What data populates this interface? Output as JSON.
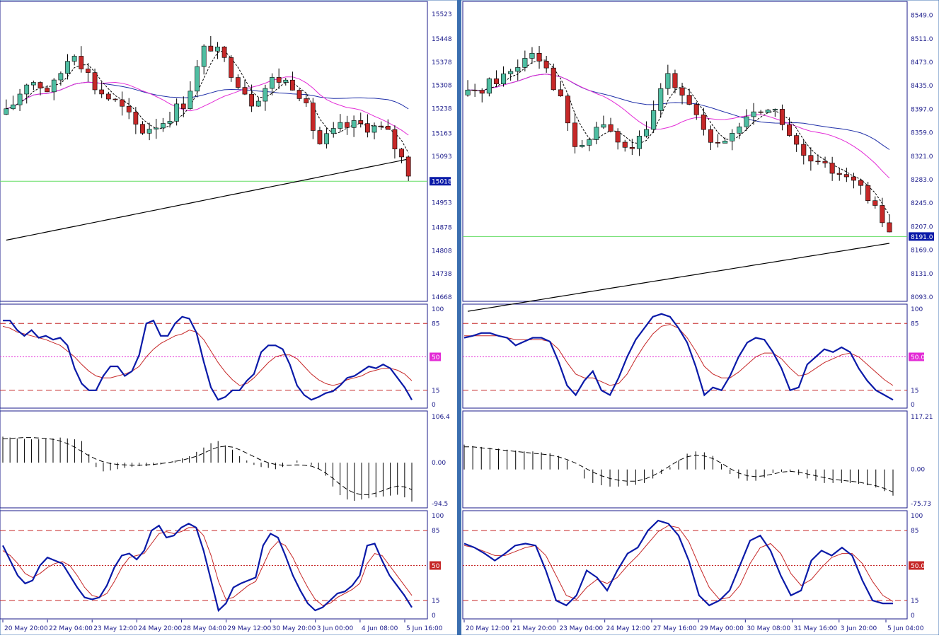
{
  "colors": {
    "bull": "#4fbea2",
    "bear": "#c62828",
    "ma_fast": "#000000",
    "ma_mid": "#e32bd6",
    "ma_slow": "#1f2fa8",
    "ma_long": "#000000",
    "level_line": "#66dd66",
    "stoch_main": "#0a1aa8",
    "stoch_signal": "#c62828",
    "level_dash": "#c62828",
    "mid_dot": "#e32bd6",
    "price_tag_bg": "#0a1aa8",
    "mid_tag_pink": "#e32bd6",
    "mid_tag_red": "#c62828",
    "panel_border": "#1a1a8a",
    "axis_text": "#1a1a8a"
  },
  "icons": [
    "price-tag-marker"
  ],
  "left": {
    "price_ticks": [
      "15523",
      "15448",
      "15378",
      "15308",
      "15238",
      "15163",
      "15093",
      "15018",
      "14953",
      "14878",
      "14808",
      "14738",
      "14668"
    ],
    "price_range": [
      14668,
      15540
    ],
    "current_price": "15018",
    "stoch1": {
      "ticks": [
        "100",
        "85",
        "50",
        "15",
        "0"
      ],
      "mid_tag": "50",
      "main": [
        88,
        88,
        78,
        72,
        78,
        70,
        72,
        68,
        70,
        62,
        38,
        22,
        15,
        15,
        30,
        40,
        40,
        30,
        35,
        52,
        85,
        88,
        72,
        72,
        85,
        92,
        90,
        75,
        45,
        18,
        5,
        8,
        15,
        15,
        25,
        32,
        55,
        62,
        62,
        58,
        42,
        20,
        10,
        5,
        8,
        12,
        14,
        20,
        28,
        30,
        35,
        40,
        38,
        42,
        38,
        28,
        18,
        5
      ],
      "signal": [
        82,
        80,
        76,
        74,
        72,
        70,
        68,
        65,
        62,
        56,
        50,
        42,
        35,
        30,
        28,
        28,
        30,
        32,
        35,
        40,
        50,
        58,
        64,
        68,
        72,
        74,
        78,
        76,
        68,
        56,
        44,
        34,
        26,
        20,
        22,
        28,
        36,
        44,
        50,
        52,
        52,
        48,
        40,
        32,
        26,
        22,
        20,
        22,
        26,
        28,
        30,
        34,
        36,
        38,
        38,
        36,
        32,
        25
      ]
    },
    "macd": {
      "top_tick": "106.4",
      "mid_tick": "0.00",
      "bottom_tick": "-94.5",
      "range": [
        -94.5,
        106.4
      ],
      "hist": [
        60,
        58,
        56,
        55,
        54,
        54,
        55,
        56,
        58,
        56,
        54,
        50,
        20,
        -10,
        -20,
        -18,
        -15,
        -12,
        -10,
        -8,
        -8,
        -6,
        -4,
        0,
        5,
        10,
        15,
        25,
        35,
        45,
        50,
        40,
        30,
        15,
        5,
        -5,
        -10,
        -12,
        -15,
        -10,
        0,
        5,
        0,
        -5,
        -15,
        -30,
        -55,
        -75,
        -85,
        -88,
        -85,
        -82,
        -80,
        -78,
        -76,
        -74,
        -80,
        -90
      ],
      "signal": [
        55,
        56,
        57,
        58,
        58,
        57,
        56,
        54,
        50,
        44,
        36,
        26,
        16,
        8,
        2,
        -2,
        -4,
        -5,
        -6,
        -6,
        -5,
        -4,
        -2,
        0,
        3,
        6,
        10,
        15,
        22,
        30,
        36,
        38,
        36,
        30,
        22,
        14,
        6,
        0,
        -4,
        -6,
        -6,
        -5,
        -6,
        -8,
        -14,
        -24,
        -36,
        -50,
        -62,
        -70,
        -74,
        -74,
        -70,
        -64,
        -58,
        -54,
        -56,
        -62
      ]
    },
    "stoch2": {
      "ticks": [
        "100",
        "85",
        "50",
        "15",
        "0"
      ],
      "mid_tag": "50",
      "main": [
        70,
        55,
        40,
        32,
        35,
        50,
        58,
        55,
        52,
        40,
        28,
        18,
        16,
        18,
        30,
        48,
        60,
        62,
        56,
        65,
        85,
        90,
        78,
        80,
        88,
        92,
        88,
        65,
        35,
        5,
        12,
        28,
        32,
        35,
        38,
        70,
        82,
        78,
        60,
        40,
        25,
        12,
        5,
        8,
        15,
        22,
        24,
        30,
        40,
        70,
        72,
        55,
        40,
        30,
        20,
        8
      ],
      "signal": [
        65,
        60,
        52,
        42,
        38,
        42,
        48,
        52,
        54,
        50,
        40,
        28,
        20,
        18,
        22,
        34,
        48,
        58,
        60,
        62,
        72,
        82,
        84,
        82,
        84,
        88,
        88,
        80,
        60,
        34,
        16,
        18,
        24,
        30,
        34,
        50,
        66,
        74,
        70,
        58,
        42,
        28,
        16,
        10,
        12,
        18,
        22,
        26,
        32,
        52,
        62,
        60,
        50,
        40,
        30,
        20
      ]
    },
    "time_labels": [
      "20 May 20:00",
      "22 May 04:00",
      "23 May 12:00",
      "24 May 20:00",
      "28 May 04:00",
      "29 May 12:00",
      "30 May 20:00",
      "3 Jun 00:00",
      "4 Jun 08:00",
      "5 Jun 16:00"
    ]
  },
  "right": {
    "price_ticks": [
      "8549.0",
      "8511.0",
      "8473.0",
      "8435.0",
      "8397.0",
      "8359.0",
      "8321.0",
      "8283.0",
      "8245.0",
      "8207.0",
      "8191.0",
      "8169.0",
      "8131.0",
      "8093.0"
    ],
    "price_range": [
      8093,
      8560
    ],
    "current_price": "8191.0",
    "stoch1": {
      "ticks": [
        "100",
        "85",
        "50.0",
        "15",
        "0"
      ],
      "mid_tag": "50.0",
      "main": [
        70,
        72,
        75,
        75,
        72,
        70,
        62,
        66,
        70,
        70,
        66,
        45,
        20,
        10,
        25,
        35,
        15,
        10,
        28,
        50,
        68,
        80,
        92,
        95,
        92,
        80,
        65,
        40,
        10,
        18,
        15,
        30,
        50,
        65,
        70,
        68,
        55,
        38,
        15,
        18,
        42,
        50,
        58,
        55,
        60,
        55,
        38,
        25,
        15,
        10,
        5
      ],
      "signal": [
        72,
        72,
        72,
        72,
        72,
        70,
        68,
        68,
        68,
        68,
        66,
        58,
        44,
        32,
        28,
        28,
        24,
        20,
        22,
        32,
        48,
        62,
        74,
        82,
        84,
        80,
        70,
        56,
        40,
        32,
        28,
        28,
        34,
        42,
        50,
        54,
        54,
        48,
        38,
        30,
        32,
        38,
        44,
        48,
        52,
        54,
        50,
        42,
        34,
        26,
        20
      ]
    },
    "macd": {
      "top_tick": "117.21",
      "mid_tick": "0.00",
      "bottom_tick": "-75.73",
      "range": [
        -75.73,
        117.21
      ],
      "hist": [
        55,
        52,
        50,
        48,
        46,
        44,
        42,
        40,
        40,
        38,
        36,
        30,
        20,
        0,
        -20,
        -30,
        -35,
        -38,
        -38,
        -36,
        -34,
        -30,
        -20,
        -10,
        5,
        20,
        35,
        40,
        38,
        30,
        12,
        -10,
        -20,
        -25,
        -25,
        -18,
        -8,
        -5,
        -5,
        -12,
        -20,
        -25,
        -30,
        -30,
        -30,
        -30,
        -32,
        -35,
        -40,
        -48,
        -58
      ],
      "signal": [
        50,
        50,
        48,
        46,
        44,
        42,
        40,
        38,
        36,
        34,
        32,
        28,
        22,
        14,
        4,
        -6,
        -14,
        -20,
        -24,
        -26,
        -26,
        -22,
        -14,
        -4,
        8,
        20,
        28,
        32,
        30,
        24,
        14,
        2,
        -8,
        -14,
        -16,
        -14,
        -10,
        -6,
        -4,
        -6,
        -10,
        -14,
        -18,
        -22,
        -24,
        -26,
        -28,
        -32,
        -36,
        -42,
        -50
      ]
    },
    "stoch2": {
      "ticks": [
        "100",
        "85",
        "50.0",
        "15",
        "0"
      ],
      "mid_tag": "50.0",
      "main": [
        72,
        68,
        62,
        55,
        62,
        70,
        72,
        70,
        45,
        15,
        10,
        20,
        45,
        38,
        25,
        45,
        62,
        68,
        85,
        95,
        92,
        80,
        55,
        20,
        10,
        15,
        25,
        50,
        75,
        80,
        65,
        40,
        20,
        25,
        55,
        65,
        60,
        68,
        60,
        35,
        15,
        12,
        12
      ],
      "signal": [
        70,
        68,
        64,
        60,
        60,
        64,
        68,
        70,
        60,
        40,
        20,
        16,
        28,
        36,
        32,
        38,
        50,
        60,
        72,
        84,
        90,
        88,
        74,
        50,
        28,
        16,
        18,
        30,
        52,
        68,
        72,
        62,
        42,
        30,
        36,
        48,
        58,
        62,
        62,
        52,
        34,
        20,
        14
      ]
    },
    "time_labels": [
      "20 May 12:00",
      "21 May 20:00",
      "23 May 04:00",
      "24 May 12:00",
      "27 May 16:00",
      "29 May 00:00",
      "30 May 08:00",
      "31 May 16:00",
      "3 Jun 20:00",
      "5 Jun 04:00"
    ]
  }
}
